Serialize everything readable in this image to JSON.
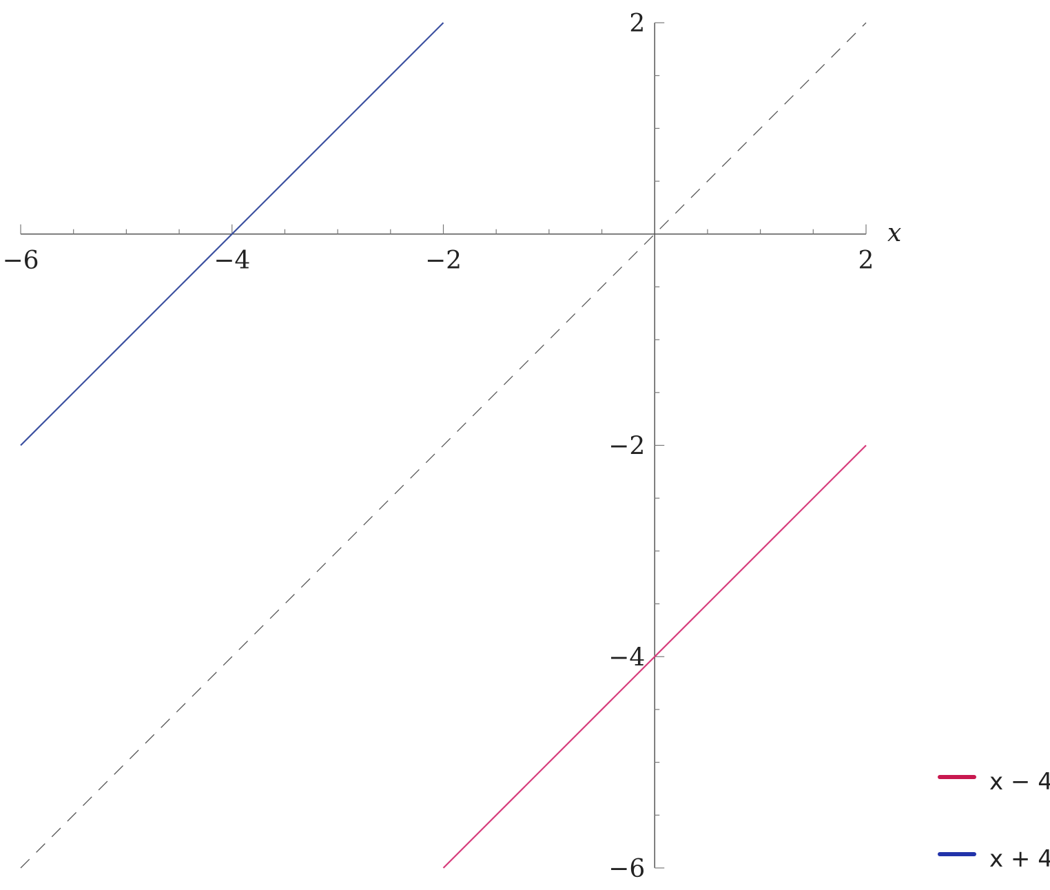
{
  "chart_data": {
    "type": "line",
    "title": "",
    "xlabel": "x",
    "ylabel": "",
    "xlim": [
      -6,
      2
    ],
    "ylim": [
      -6,
      2
    ],
    "grid": false,
    "x_ticks": [
      -6,
      -4,
      -2,
      2
    ],
    "x_tick_labels": [
      "−6",
      "−4",
      "−2",
      "2"
    ],
    "y_ticks": [
      2,
      -2,
      -4,
      -6
    ],
    "y_tick_labels": [
      "2",
      "−2",
      "−4",
      "−6"
    ],
    "legend_placement": "bottom-right",
    "series": [
      {
        "name": "x − 4",
        "color": "#d63a7a",
        "legend_color": "#c8184f",
        "x": [
          -2,
          2
        ],
        "y": [
          -6,
          -2
        ]
      },
      {
        "name": "x + 4",
        "color": "#3a4fa0",
        "legend_color": "#2233aa",
        "x": [
          -6,
          -2
        ],
        "y": [
          -2,
          2
        ]
      }
    ],
    "reference_line": {
      "style": "dashed",
      "color": "#555555",
      "x": [
        -6,
        2
      ],
      "y": [
        -6,
        2
      ]
    }
  }
}
